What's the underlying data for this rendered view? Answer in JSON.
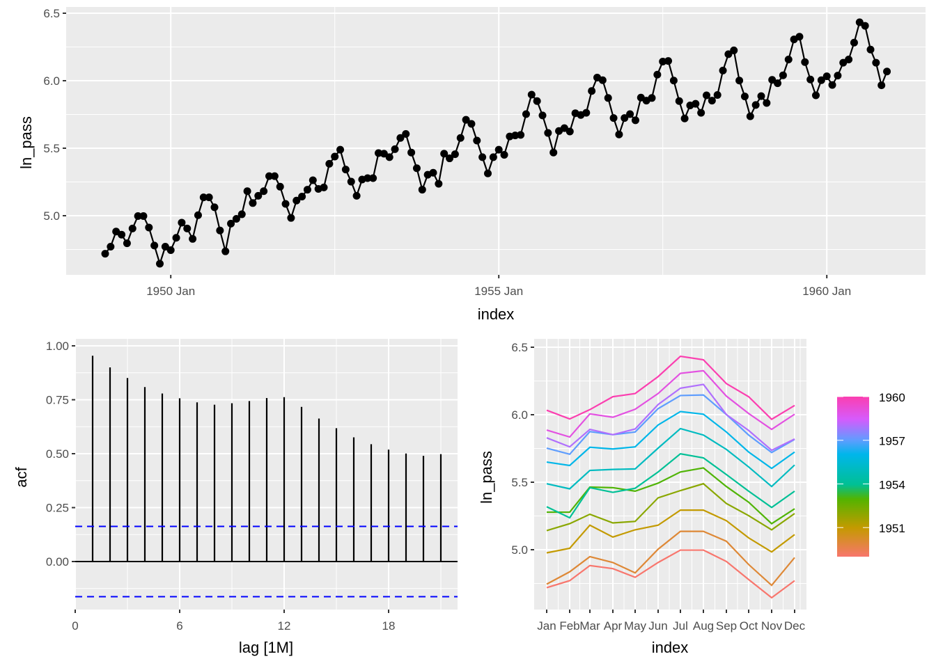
{
  "chart_data": [
    {
      "id": "timeplot",
      "type": "line",
      "title": "",
      "xlabel": "index",
      "ylabel": "ln_pass",
      "ylim": [
        4.6,
        6.5
      ],
      "yticks": [
        "5.0",
        "5.5",
        "6.0",
        "6.5"
      ],
      "ytick_values": [
        5.0,
        5.5,
        6.0,
        6.5
      ],
      "xticks": [
        "1950 Jan",
        "1955 Jan",
        "1960 Jan"
      ],
      "xtick_years": [
        1950,
        1955,
        1960
      ],
      "start_year": 1949,
      "markers": true,
      "grid": true,
      "passengers": [
        112,
        118,
        132,
        129,
        121,
        135,
        148,
        148,
        136,
        119,
        104,
        118,
        115,
        126,
        141,
        135,
        125,
        149,
        170,
        170,
        158,
        133,
        114,
        140,
        145,
        150,
        178,
        163,
        172,
        178,
        199,
        199,
        184,
        162,
        146,
        166,
        171,
        180,
        193,
        181,
        183,
        218,
        230,
        242,
        209,
        191,
        172,
        194,
        196,
        196,
        236,
        235,
        229,
        243,
        264,
        272,
        237,
        211,
        180,
        201,
        204,
        188,
        235,
        227,
        234,
        264,
        302,
        293,
        259,
        229,
        203,
        229,
        242,
        233,
        267,
        269,
        270,
        315,
        364,
        347,
        312,
        274,
        237,
        278,
        284,
        277,
        317,
        313,
        318,
        374,
        413,
        405,
        355,
        306,
        271,
        306,
        315,
        301,
        356,
        348,
        355,
        422,
        465,
        467,
        404,
        347,
        305,
        336,
        340,
        318,
        362,
        348,
        363,
        435,
        491,
        505,
        404,
        359,
        310,
        337,
        360,
        342,
        406,
        396,
        420,
        472,
        548,
        559,
        463,
        407,
        362,
        405,
        417,
        391,
        419,
        461,
        472,
        535,
        622,
        606,
        508,
        461,
        390,
        432
      ],
      "series_note": "y = ln(passengers)"
    },
    {
      "id": "acf",
      "type": "bar",
      "xlabel": "lag [1M]",
      "ylabel": "acf",
      "ylim": [
        -0.2,
        1.0
      ],
      "xlim": [
        0,
        22
      ],
      "yticks": [
        "0.00",
        "0.25",
        "0.50",
        "0.75",
        "1.00"
      ],
      "ytick_values": [
        0,
        0.25,
        0.5,
        0.75,
        1.0
      ],
      "xticks": [
        "0",
        "6",
        "12",
        "18"
      ],
      "xtick_values": [
        0,
        6,
        12,
        18
      ],
      "lags": [
        1,
        2,
        3,
        4,
        5,
        6,
        7,
        8,
        9,
        10,
        11,
        12,
        13,
        14,
        15,
        16,
        17,
        18,
        19,
        20,
        21
      ],
      "values": [
        0.954,
        0.9,
        0.851,
        0.809,
        0.779,
        0.757,
        0.738,
        0.727,
        0.734,
        0.744,
        0.758,
        0.762,
        0.717,
        0.663,
        0.618,
        0.576,
        0.544,
        0.519,
        0.501,
        0.49,
        0.498
      ],
      "ci_upper": 0.163,
      "ci_lower": -0.163,
      "ci_color": "#0000ff",
      "grid": true
    },
    {
      "id": "seasonal",
      "type": "line",
      "xlabel": "index",
      "ylabel": "ln_pass",
      "ylim": [
        4.6,
        6.5
      ],
      "yticks": [
        "5.0",
        "5.5",
        "6.0",
        "6.5"
      ],
      "ytick_values": [
        5.0,
        5.5,
        6.0,
        6.5
      ],
      "categories": [
        "Jan",
        "Feb",
        "Mar",
        "Apr",
        "May",
        "Jun",
        "Jul",
        "Aug",
        "Sep",
        "Oct",
        "Nov",
        "Dec"
      ],
      "years": [
        1949,
        1950,
        1951,
        1952,
        1953,
        1954,
        1955,
        1956,
        1957,
        1958,
        1959,
        1960
      ],
      "legend": {
        "title": "",
        "placement": "right",
        "labels": [
          "1951",
          "1954",
          "1957",
          "1960"
        ],
        "label_values": [
          1951,
          1954,
          1957,
          1960
        ],
        "range": [
          1949,
          1960
        ]
      },
      "series_from": "timeplot.passengers (ln, grouped by year)",
      "grid": true
    }
  ]
}
